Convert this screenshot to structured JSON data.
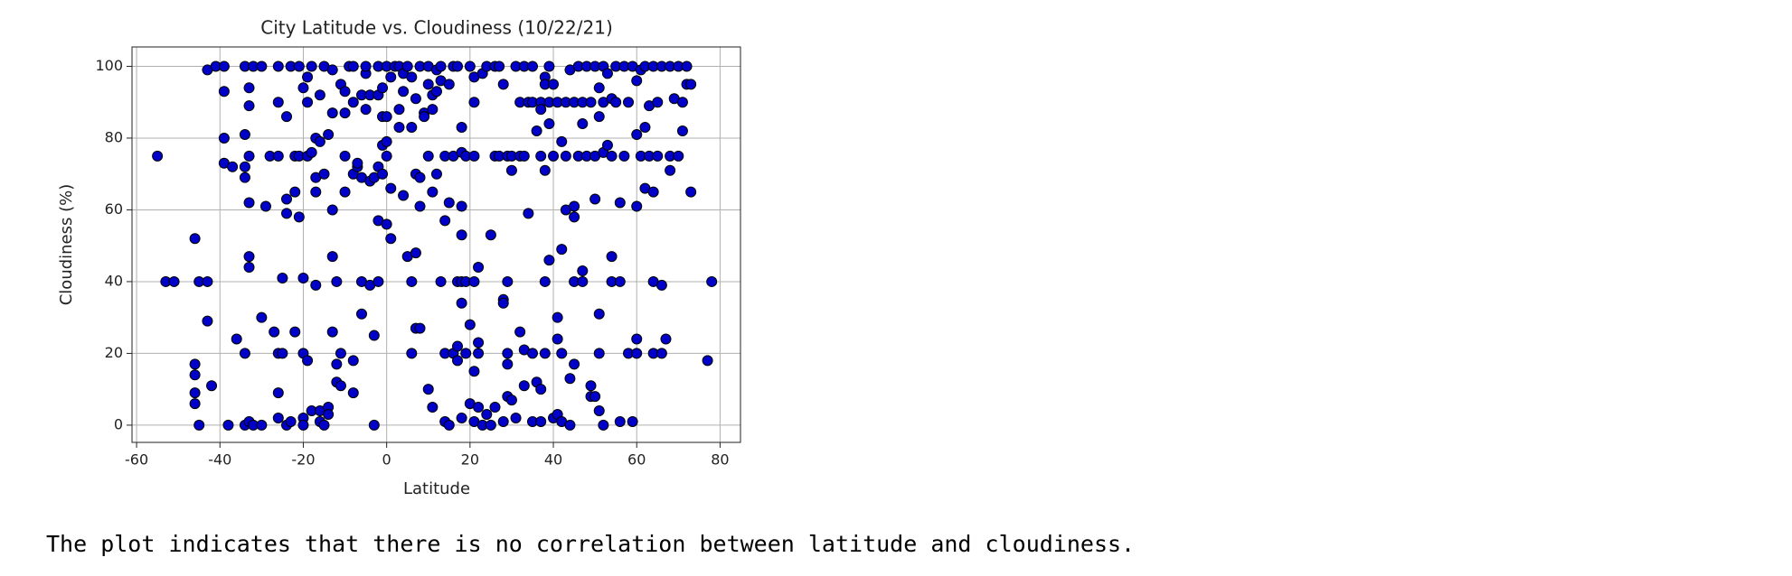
{
  "chart_data": {
    "type": "scatter",
    "title": "City Latitude vs. Cloudiness (10/22/21)",
    "xlabel": "Latitude",
    "ylabel": "Cloudiness (%)",
    "xlim": [
      -61.1,
      84.9
    ],
    "ylim": [
      -4.8,
      105.4
    ],
    "xticks": [
      -60,
      -40,
      -20,
      0,
      20,
      40,
      60,
      80
    ],
    "yticks": [
      0,
      20,
      40,
      60,
      80,
      100
    ],
    "grid": true,
    "series": [
      {
        "color": "#0000c8",
        "x": [
          -55,
          -53,
          -51,
          -46,
          -46,
          -46,
          -46,
          -46,
          -45,
          -45,
          -43,
          -43,
          -42,
          -43,
          -41,
          -39,
          -39,
          -39,
          -39,
          -37,
          -38,
          -36,
          -34,
          -34,
          -34,
          -33,
          -33,
          -33,
          -33,
          -34,
          -33,
          -33,
          -34,
          -32,
          -30,
          -34,
          -33,
          -32,
          -30,
          -30,
          -29,
          -28,
          -27,
          -26,
          -26,
          -26,
          -26,
          -25,
          -26,
          -26,
          -25,
          -24,
          -24,
          -24,
          -24,
          -23,
          -23,
          -22,
          -22,
          -22,
          -21,
          -21,
          -21,
          -20,
          -20,
          -20,
          -20,
          -20,
          -19,
          -19,
          -19,
          -19,
          -18,
          -18,
          -18,
          -17,
          -17,
          -17,
          -17,
          -16,
          -16,
          -16,
          -16,
          -15,
          -15,
          -15,
          -14,
          -14,
          -14,
          -13,
          -13,
          -13,
          -13,
          -13,
          -12,
          -12,
          -12,
          -11,
          -11,
          -11,
          -10,
          -10,
          -10,
          -10,
          -9,
          -8,
          -8,
          -8,
          -8,
          -8,
          -7,
          -7,
          -6,
          -6,
          -6,
          -6,
          -5,
          -5,
          -5,
          -4,
          -4,
          -4,
          -3,
          -3,
          -3,
          -2,
          -2,
          -2,
          -2,
          -2,
          -1,
          -1,
          -1,
          -1,
          0,
          0,
          0,
          0,
          0,
          1,
          1,
          1,
          2,
          3,
          3,
          3,
          4,
          4,
          4,
          5,
          5,
          6,
          6,
          6,
          6,
          7,
          7,
          7,
          7,
          8,
          8,
          8,
          8,
          9,
          9,
          10,
          10,
          10,
          10,
          11,
          11,
          11,
          11,
          12,
          12,
          12,
          13,
          13,
          13,
          14,
          14,
          14,
          14,
          15,
          15,
          15,
          16,
          16,
          16,
          17,
          17,
          17,
          17,
          18,
          18,
          18,
          18,
          18,
          18,
          18,
          19,
          19,
          19,
          20,
          20,
          20,
          21,
          21,
          21,
          21,
          21,
          21,
          22,
          22,
          22,
          22,
          23,
          23,
          24,
          24,
          25,
          25,
          26,
          26,
          26,
          27,
          27,
          28,
          28,
          28,
          28,
          29,
          29,
          29,
          29,
          29,
          30,
          30,
          30,
          31,
          31,
          32,
          32,
          32,
          33,
          33,
          33,
          33,
          34,
          34,
          35,
          35,
          35,
          35,
          36,
          36,
          37,
          37,
          37,
          37,
          37,
          38,
          38,
          38,
          38,
          38,
          39,
          39,
          39,
          39,
          40,
          40,
          40,
          41,
          41,
          41,
          41,
          42,
          42,
          42,
          42,
          43,
          43,
          43,
          44,
          44,
          44,
          45,
          45,
          45,
          45,
          45,
          46,
          46,
          47,
          47,
          47,
          47,
          48,
          48,
          49,
          49,
          49,
          50,
          50,
          50,
          50,
          51,
          51,
          51,
          51,
          51,
          52,
          52,
          52,
          52,
          53,
          53,
          54,
          54,
          54,
          54,
          55,
          55,
          56,
          56,
          56,
          57,
          57,
          58,
          58,
          59,
          59,
          60,
          60,
          60,
          60,
          60,
          61,
          61,
          62,
          62,
          62,
          63,
          63,
          64,
          64,
          64,
          64,
          65,
          65,
          66,
          66,
          66,
          67,
          68,
          68,
          68,
          69,
          70,
          70,
          71,
          71,
          72,
          72,
          73,
          73,
          77,
          78
        ],
        "values": [
          75,
          40,
          40,
          52,
          17,
          14,
          9,
          6,
          0,
          40,
          40,
          29,
          11,
          99,
          100,
          100,
          93,
          80,
          73,
          72,
          0,
          24,
          81,
          72,
          69,
          75,
          62,
          47,
          44,
          20,
          94,
          89,
          100,
          100,
          100,
          0,
          1,
          0,
          0,
          30,
          61,
          75,
          26,
          100,
          75,
          90,
          20,
          20,
          9,
          2,
          41,
          63,
          59,
          86,
          0,
          100,
          1,
          26,
          65,
          75,
          58,
          75,
          100,
          41,
          20,
          2,
          0,
          94,
          90,
          97,
          75,
          18,
          100,
          76,
          4,
          80,
          69,
          65,
          39,
          92,
          79,
          4,
          1,
          100,
          70,
          0,
          81,
          5,
          3,
          99,
          87,
          60,
          47,
          26,
          17,
          12,
          40,
          95,
          20,
          11,
          87,
          93,
          75,
          65,
          100,
          100,
          90,
          70,
          18,
          9,
          72,
          73,
          92,
          69,
          40,
          31,
          98,
          88,
          100,
          92,
          68,
          39,
          69,
          25,
          0,
          100,
          92,
          72,
          57,
          40,
          94,
          86,
          78,
          70,
          56,
          100,
          86,
          79,
          75,
          97,
          52,
          66,
          100,
          100,
          88,
          83,
          64,
          98,
          93,
          100,
          47,
          83,
          97,
          40,
          20,
          91,
          70,
          48,
          27,
          100,
          69,
          61,
          27,
          87,
          86,
          100,
          95,
          75,
          10,
          5,
          88,
          92,
          65,
          99,
          93,
          70,
          100,
          96,
          40,
          20,
          75,
          57,
          1,
          0,
          95,
          62,
          100,
          20,
          75,
          100,
          40,
          22,
          18,
          83,
          76,
          61,
          53,
          40,
          34,
          2,
          75,
          40,
          20,
          100,
          28,
          6,
          97,
          75,
          90,
          40,
          15,
          1,
          44,
          23,
          20,
          5,
          0,
          98,
          100,
          3,
          53,
          0,
          100,
          75,
          5,
          100,
          75,
          95,
          35,
          34,
          1,
          75,
          40,
          20,
          17,
          8,
          71,
          7,
          75,
          100,
          2,
          90,
          75,
          26,
          100,
          75,
          21,
          11,
          90,
          59,
          100,
          90,
          20,
          1,
          12,
          82,
          90,
          88,
          75,
          10,
          1,
          97,
          95,
          71,
          40,
          20,
          100,
          90,
          84,
          46,
          2,
          95,
          75,
          90,
          30,
          24,
          3,
          79,
          49,
          20,
          1,
          90,
          75,
          60,
          99,
          13,
          0,
          90,
          61,
          58,
          40,
          17,
          100,
          75,
          84,
          43,
          40,
          90,
          100,
          75,
          90,
          11,
          8,
          100,
          75,
          63,
          8,
          94,
          86,
          31,
          20,
          4,
          100,
          76,
          90,
          0,
          98,
          78,
          91,
          75,
          47,
          40,
          100,
          90,
          62,
          40,
          1,
          100,
          75,
          90,
          20,
          100,
          1,
          96,
          81,
          61,
          24,
          20,
          99,
          75,
          100,
          83,
          66,
          89,
          75,
          100,
          65,
          40,
          20,
          90,
          75,
          100,
          39,
          20,
          24,
          100,
          71,
          75,
          91,
          100,
          75,
          90,
          82,
          100,
          95,
          65,
          95,
          18,
          40
        ]
      }
    ]
  },
  "caption": "The plot indicates that there is no correlation between latitude and cloudiness."
}
